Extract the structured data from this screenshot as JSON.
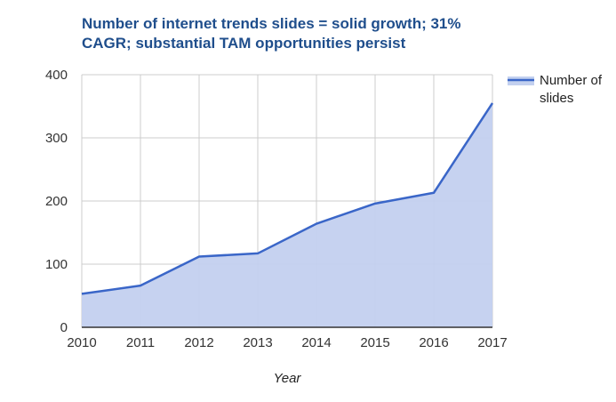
{
  "chart_data": {
    "type": "area",
    "title": "Number of internet trends slides = solid growth; 31% CAGR; substantial TAM opportunities persist",
    "xlabel": "Year",
    "ylabel": "",
    "x": [
      "2010",
      "2011",
      "2012",
      "2013",
      "2014",
      "2015",
      "2016",
      "2017"
    ],
    "series": [
      {
        "name": "Number of slides",
        "values": [
          53,
          66,
          112,
          117,
          164,
          196,
          213,
          355
        ]
      }
    ],
    "ylim": [
      0,
      400
    ],
    "yticks": [
      0,
      100,
      200,
      300,
      400
    ],
    "grid": true,
    "legend_position": "right",
    "colors": {
      "line": "#3a66c8",
      "fill": "#c3d0ef",
      "grid": "#cccccc",
      "title": "#1f4e8c"
    }
  }
}
